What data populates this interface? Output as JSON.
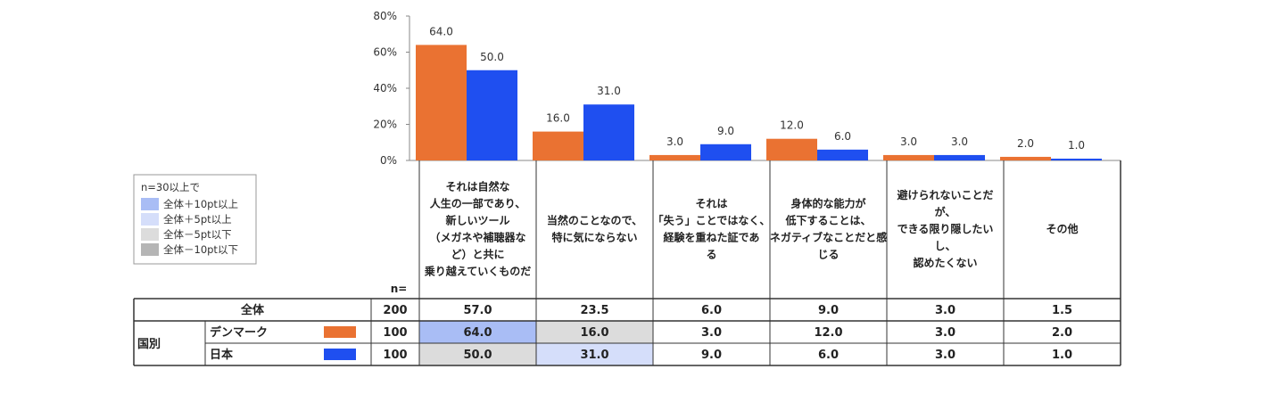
{
  "chart_data": {
    "type": "bar",
    "categories": [
      [
        "それは自然な",
        "人生の一部であり、",
        "新しいツール",
        "（メガネや補聴器な",
        "ど）と共に",
        "乗り越えていくものだ"
      ],
      [
        "当然のことなので、",
        "特に気にならない"
      ],
      [
        "それは",
        "「失う」ことではなく、",
        "経験を重ねた証であ",
        "る"
      ],
      [
        "身体的な能力が",
        "低下することは、",
        "ネガティブなことだと感",
        "じる"
      ],
      [
        "避けられないことだ",
        "が、",
        "できる限り隠したい",
        "し、",
        "認めたくない"
      ],
      [
        "その他"
      ]
    ],
    "series": [
      {
        "name": "デンマーク",
        "color": "#ea7232",
        "values": [
          64.0,
          16.0,
          3.0,
          12.0,
          3.0,
          2.0
        ],
        "labels": [
          "64.0",
          "16.0",
          "3.0",
          "12.0",
          "3.0",
          "2.0"
        ]
      },
      {
        "name": "日本",
        "color": "#1f4ff0",
        "values": [
          50.0,
          31.0,
          9.0,
          6.0,
          3.0,
          1.0
        ],
        "labels": [
          "50.0",
          "31.0",
          "9.0",
          "6.0",
          "3.0",
          "1.0"
        ]
      }
    ],
    "yticks": [
      "0%",
      "20%",
      "40%",
      "60%",
      "80%"
    ],
    "ylim": [
      0,
      80
    ],
    "table": {
      "n_header": "n=",
      "total": {
        "label": "全体",
        "n": "200",
        "values": [
          "57.0",
          "23.5",
          "6.0",
          "9.0",
          "3.0",
          "1.5"
        ]
      },
      "group_label": "国別",
      "rows": [
        {
          "label": "デンマーク",
          "n": "100",
          "values": [
            "64.0",
            "16.0",
            "3.0",
            "12.0",
            "3.0",
            "2.0"
          ],
          "highlight": [
            "plus10",
            "minus5",
            "",
            "",
            "",
            ""
          ]
        },
        {
          "label": "日本",
          "n": "100",
          "values": [
            "50.0",
            "31.0",
            "9.0",
            "6.0",
            "3.0",
            "1.0"
          ],
          "highlight": [
            "minus5",
            "plus5",
            "",
            "",
            "",
            ""
          ]
        }
      ]
    },
    "legend": {
      "title": "n=30以上で",
      "items": [
        {
          "label": "全体＋10pt以上",
          "color": "#a9bdf5"
        },
        {
          "label": "全体＋5pt以上",
          "color": "#d5defa"
        },
        {
          "label": "全体－5pt以下",
          "color": "#dcdcdc"
        },
        {
          "label": "全体－10pt以下",
          "color": "#b5b5b5"
        }
      ]
    },
    "highlight_colors": {
      "plus10": "#a9bdf5",
      "plus5": "#d5defa",
      "minus5": "#dcdcdc",
      "minus10": "#b5b5b5"
    }
  }
}
